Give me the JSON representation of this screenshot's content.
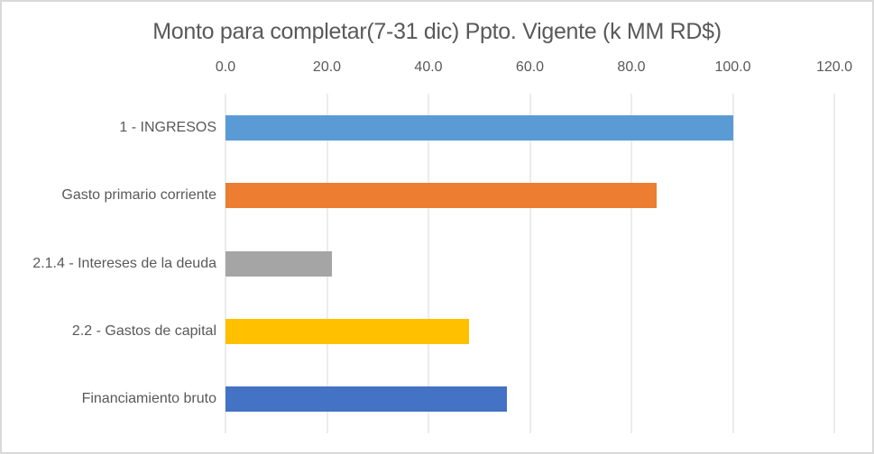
{
  "chart_data": {
    "type": "bar",
    "orientation": "horizontal",
    "title": "Monto para completar(7-31 dic) Ppto. Vigente (k MM RD$)",
    "categories": [
      "1 - INGRESOS",
      "Gasto primario corriente",
      "2.1.4 - Intereses de la deuda",
      "2.2 - Gastos de capital",
      "Financiamiento bruto"
    ],
    "values": [
      100,
      85,
      21,
      48,
      55.5
    ],
    "bar_colors": [
      "#5B9BD5",
      "#ED7D31",
      "#A5A5A5",
      "#FFC000",
      "#4472C4"
    ],
    "xlabel": "",
    "ylabel": "",
    "xlim": [
      0,
      120
    ],
    "x_ticks": [
      0,
      20,
      40,
      60,
      80,
      100,
      120
    ],
    "x_tick_labels": [
      "0.0",
      "20.0",
      "40.0",
      "60.0",
      "80.0",
      "100.0",
      "120.0"
    ],
    "axis_position": "top",
    "grid": "vertical",
    "legend_position": "none",
    "colors": {
      "text": "#595959",
      "gridline": "#D9D9D9",
      "background": "#FFFFFF",
      "border": "#D9D9D9"
    }
  }
}
